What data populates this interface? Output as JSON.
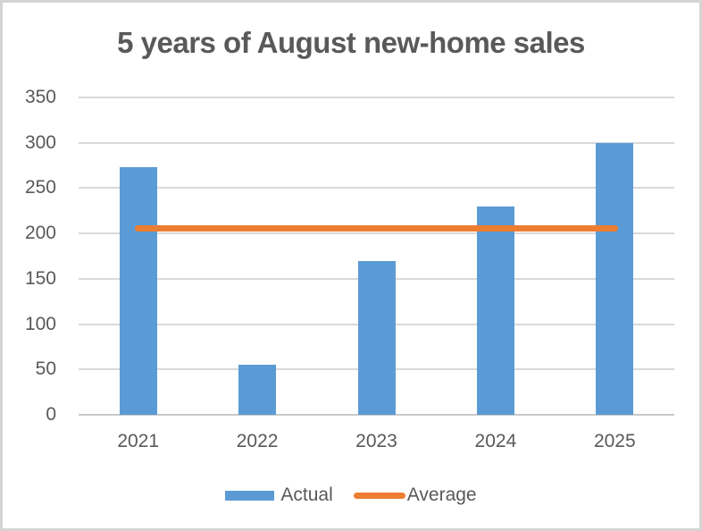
{
  "window": {
    "background": "#ffffff",
    "frame_color": "#d4d4d4"
  },
  "chart_data": {
    "type": "bar",
    "title": "5 years of August new-home sales",
    "categories": [
      "2021",
      "2022",
      "2023",
      "2024",
      "2025"
    ],
    "series": [
      {
        "name": "Actual",
        "type": "bar",
        "values": [
          273,
          55,
          170,
          230,
          300
        ],
        "color": "#5b9bd5"
      },
      {
        "name": "Average",
        "type": "line",
        "value": 205.6,
        "color": "#ed7d31"
      }
    ],
    "xlabel": "",
    "ylabel": "",
    "ylim": [
      0,
      350
    ],
    "yticks": [
      0,
      50,
      100,
      150,
      200,
      250,
      300,
      350
    ],
    "grid": true,
    "gridline_color": "#d9d9d9",
    "text_color": "#595959",
    "legend_position": "bottom"
  },
  "legend": {
    "items": [
      {
        "label": "Actual",
        "swatch": "bar-swatch"
      },
      {
        "label": "Average",
        "swatch": "line-swatch"
      }
    ]
  }
}
